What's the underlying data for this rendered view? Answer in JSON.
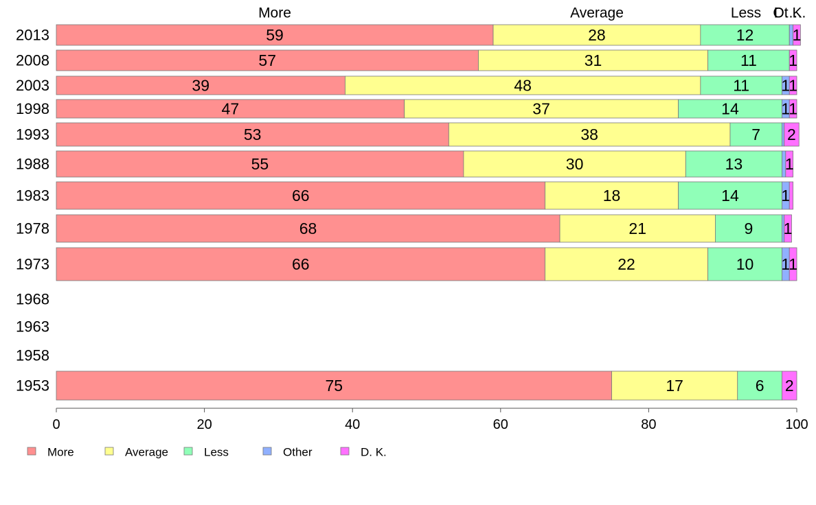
{
  "chart_data": {
    "type": "bar",
    "orientation": "horizontal",
    "stacked": true,
    "title": "",
    "xlabel": "",
    "ylabel": "",
    "xlim": [
      0,
      100
    ],
    "x_ticks": [
      "0",
      "20",
      "40",
      "60",
      "80",
      "100"
    ],
    "grid": false,
    "legend_position": "bottom-left",
    "top_labels": [
      "More",
      "Average",
      "Less",
      "Ot…",
      "D. K."
    ],
    "categories": [
      "2013",
      "2008",
      "2003",
      "1998",
      "1993",
      "1988",
      "1983",
      "1978",
      "1973",
      "1968",
      "1963",
      "1958",
      "1953"
    ],
    "series": [
      {
        "name": "More",
        "color": "#FF9090",
        "values": [
          59,
          57,
          39,
          47,
          53,
          55,
          66,
          68,
          66,
          null,
          null,
          null,
          75
        ]
      },
      {
        "name": "Average",
        "color": "#FFFF90",
        "values": [
          28,
          31,
          48,
          37,
          38,
          30,
          18,
          21,
          22,
          null,
          null,
          null,
          17
        ]
      },
      {
        "name": "Less",
        "color": "#90FFB8",
        "values": [
          12,
          11,
          11,
          14,
          7,
          13,
          14,
          9,
          10,
          null,
          null,
          null,
          6
        ]
      },
      {
        "name": "Other",
        "color": "#90B0FF",
        "values": [
          0.5,
          0,
          1,
          1,
          0.3,
          0.5,
          1,
          0.3,
          1,
          null,
          null,
          null,
          0
        ]
      },
      {
        "name": "D. K.",
        "color": "#FF70FF",
        "values": [
          1,
          1,
          1,
          1,
          2,
          1,
          0.5,
          1,
          1,
          null,
          null,
          null,
          2
        ]
      }
    ]
  }
}
